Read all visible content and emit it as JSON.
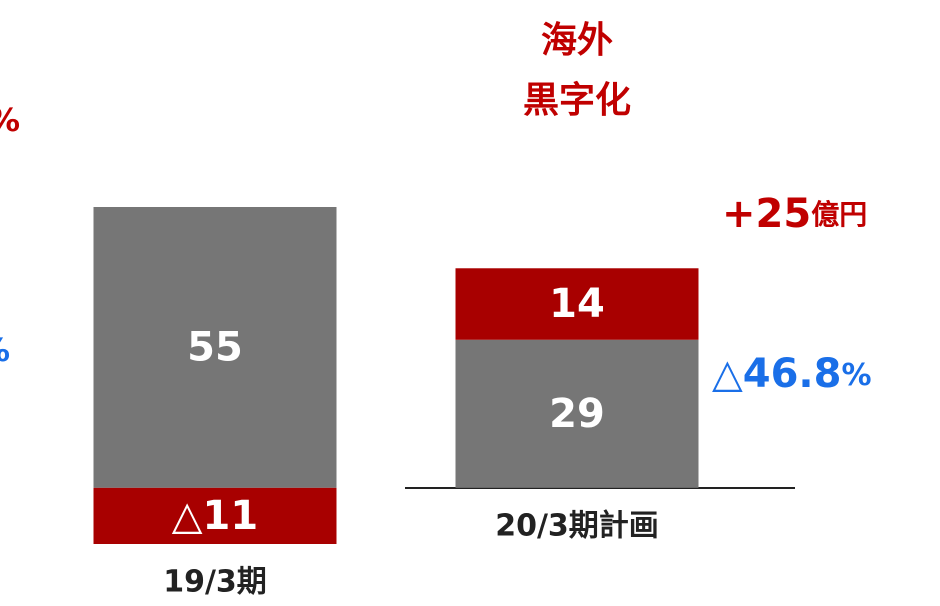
{
  "chart_data": {
    "type": "stacked_bar",
    "categories": [
      "19/3期",
      "20/3期計画"
    ],
    "series": [
      {
        "color": "#767676",
        "values": [
          55,
          29
        ],
        "value_labels": [
          "55",
          "29"
        ]
      },
      {
        "color": "#a80000",
        "values": [
          -11,
          14
        ],
        "value_labels": [
          "△11",
          "14"
        ]
      }
    ],
    "ylim": [
      -11,
      55
    ],
    "annotations": [
      {
        "lines": [
          "海外",
          "黒字化"
        ],
        "color": "#c00000"
      },
      {
        "text": "+25",
        "unit": "億円",
        "color": "#c00000"
      },
      {
        "text": "△46.8",
        "unit": "%",
        "color": "#1a6fe8"
      },
      {
        "text": "%",
        "color": "#c00000"
      },
      {
        "text": "%",
        "color": "#1a6fe8"
      }
    ]
  }
}
